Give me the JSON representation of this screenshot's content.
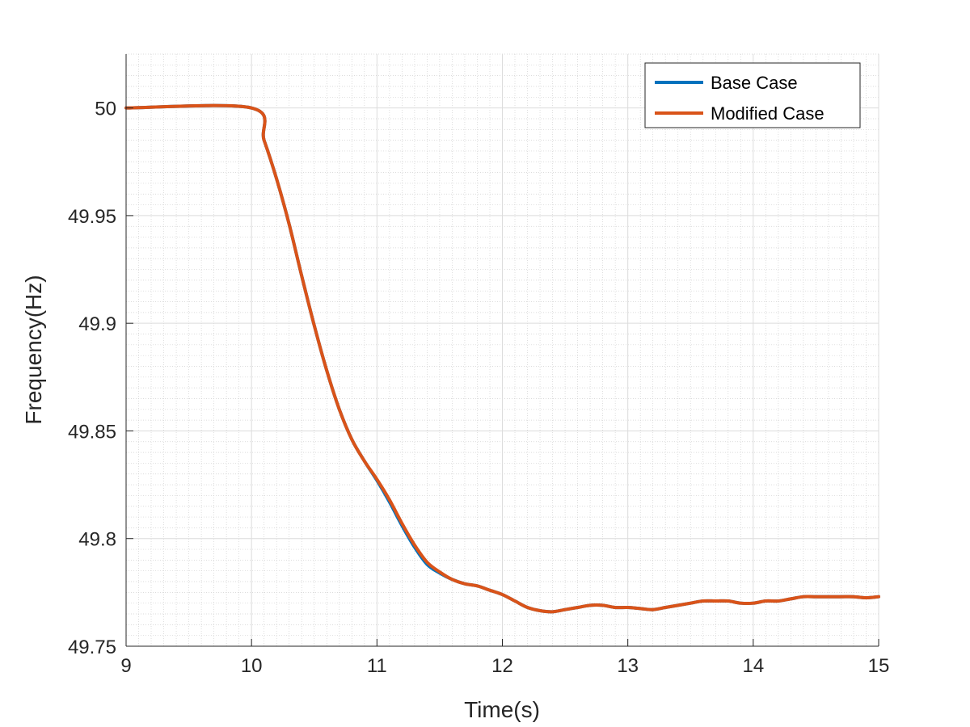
{
  "chart_data": {
    "type": "line",
    "xlabel": "Time(s)",
    "ylabel": "Frequency(Hz)",
    "xlim": [
      9,
      15
    ],
    "ylim": [
      49.75,
      50.025
    ],
    "xticks": [
      "9",
      "10",
      "11",
      "12",
      "13",
      "14",
      "15"
    ],
    "yticks": [
      "49.75",
      "49.8",
      "49.85",
      "49.9",
      "49.95",
      "50"
    ],
    "grid": true,
    "minor_grid": true,
    "legend_position": "top-right",
    "series": [
      {
        "name": "Base Case",
        "color": "#0072BD",
        "x": [
          9,
          10,
          10.1,
          10.2,
          10.3,
          10.4,
          10.5,
          10.6,
          10.7,
          10.8,
          10.9,
          11,
          11.1,
          11.2,
          11.3,
          11.4,
          11.5,
          11.6,
          11.7,
          11.8,
          11.9,
          12,
          12.1,
          12.2,
          12.3,
          12.4,
          12.5,
          12.6,
          12.7,
          12.8,
          12.9,
          13,
          13.1,
          13.2,
          13.3,
          13.4,
          13.5,
          13.6,
          13.7,
          13.8,
          13.9,
          14,
          14.1,
          14.2,
          14.3,
          14.4,
          14.5,
          14.6,
          14.7,
          14.8,
          14.9,
          15
        ],
        "y": [
          50.0,
          50.0,
          49.985,
          49.967,
          49.946,
          49.922,
          49.899,
          49.878,
          49.86,
          49.846,
          49.836,
          49.827,
          49.817,
          49.806,
          49.796,
          49.788,
          49.784,
          49.781,
          49.779,
          49.778,
          49.776,
          49.774,
          49.771,
          49.768,
          49.7665,
          49.766,
          49.767,
          49.768,
          49.769,
          49.769,
          49.768,
          49.768,
          49.7675,
          49.767,
          49.768,
          49.769,
          49.77,
          49.771,
          49.771,
          49.771,
          49.77,
          49.77,
          49.771,
          49.771,
          49.772,
          49.773,
          49.773,
          49.773,
          49.773,
          49.773,
          49.7725,
          49.773
        ]
      },
      {
        "name": "Modified Case",
        "color": "#D95319",
        "x": [
          9,
          10,
          10.1,
          10.2,
          10.3,
          10.4,
          10.5,
          10.6,
          10.7,
          10.8,
          10.9,
          11,
          11.1,
          11.2,
          11.3,
          11.4,
          11.5,
          11.6,
          11.7,
          11.8,
          11.9,
          12,
          12.1,
          12.2,
          12.3,
          12.4,
          12.5,
          12.6,
          12.7,
          12.8,
          12.9,
          13,
          13.1,
          13.2,
          13.3,
          13.4,
          13.5,
          13.6,
          13.7,
          13.8,
          13.9,
          14,
          14.1,
          14.2,
          14.3,
          14.4,
          14.5,
          14.6,
          14.7,
          14.8,
          14.9,
          15
        ],
        "y": [
          50.0,
          50.0,
          49.985,
          49.967,
          49.946,
          49.922,
          49.899,
          49.878,
          49.86,
          49.846,
          49.836,
          49.8275,
          49.818,
          49.807,
          49.797,
          49.789,
          49.7845,
          49.781,
          49.779,
          49.778,
          49.776,
          49.774,
          49.771,
          49.768,
          49.7665,
          49.766,
          49.767,
          49.768,
          49.769,
          49.769,
          49.768,
          49.768,
          49.7675,
          49.767,
          49.768,
          49.769,
          49.77,
          49.771,
          49.771,
          49.771,
          49.77,
          49.77,
          49.771,
          49.771,
          49.772,
          49.773,
          49.773,
          49.773,
          49.773,
          49.773,
          49.7725,
          49.773
        ]
      }
    ]
  }
}
